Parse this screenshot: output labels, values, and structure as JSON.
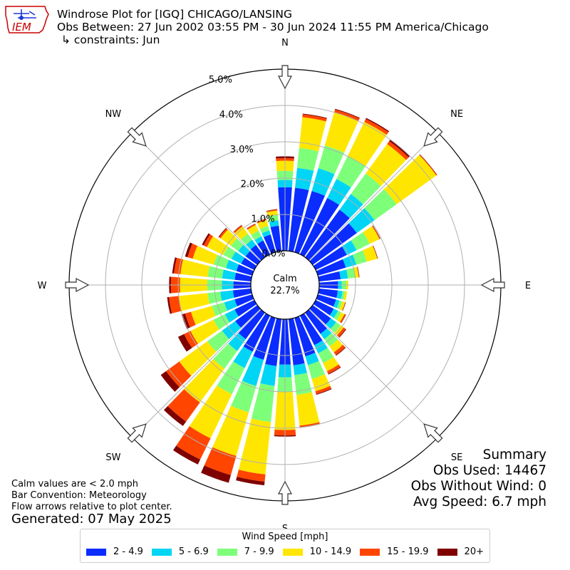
{
  "header": {
    "title": "Windrose Plot for [IGQ] CHICAGO/LANSING",
    "period": "Obs Between: 27 Jun 2002 03:55 PM - 30 Jun 2024 11:55 PM America/Chicago",
    "constraints": "↳ constraints: Jun"
  },
  "logo": {
    "text": "IEM",
    "color": "#cc0000"
  },
  "summary": {
    "heading": "Summary",
    "obs_used": "Obs Used: 14467",
    "obs_without_wind": "Obs Without Wind: 0",
    "avg_speed": "Avg Speed: 6.7 mph"
  },
  "notes": {
    "calm_note": "Calm values are < 2.0 mph",
    "bar_convention": "Bar Convention: Meteorology",
    "flow_note": "Flow arrows relative to plot center."
  },
  "generated": "Generated: 07 May 2025",
  "chart_data": {
    "type": "windrose",
    "units": "mph",
    "calm": {
      "label": "Calm",
      "value_label": "22.7%",
      "percent": 22.7
    },
    "radial_ticks": [
      "0.0%",
      "1.0%",
      "2.0%",
      "3.0%",
      "4.0%",
      "5.0%"
    ],
    "rmax": 5.0,
    "compass": [
      "N",
      "NE",
      "E",
      "SE",
      "S",
      "SW",
      "W",
      "NW"
    ],
    "legend_title": "Wind Speed [mph]",
    "bins": [
      "2 - 4.9",
      "5 - 6.9",
      "7 - 9.9",
      "10 - 14.9",
      "15 - 19.9",
      "20+"
    ],
    "colors": [
      "#0a2cff",
      "#00d5f5",
      "#7dff7a",
      "#ffe600",
      "#ff4500",
      "#7f0000"
    ],
    "sector_width_deg": 10,
    "directions_deg": [
      0,
      10,
      20,
      30,
      40,
      50,
      60,
      70,
      80,
      90,
      100,
      110,
      120,
      130,
      140,
      150,
      160,
      170,
      180,
      190,
      200,
      210,
      220,
      230,
      240,
      250,
      260,
      270,
      280,
      290,
      300,
      310,
      320,
      330,
      340,
      350
    ],
    "cumulative_percent": [
      [
        1.75,
        1.95,
        2.2,
        2.48,
        2.55,
        2.6
      ],
      [
        1.75,
        2.3,
        2.85,
        3.7,
        3.78,
        3.8
      ],
      [
        1.75,
        2.4,
        3.05,
        4.0,
        4.08,
        4.1
      ],
      [
        1.72,
        2.3,
        3.0,
        4.05,
        4.14,
        4.17
      ],
      [
        1.62,
        2.15,
        2.85,
        3.85,
        3.95,
        4.0
      ],
      [
        1.5,
        2.1,
        2.85,
        4.2,
        4.22,
        4.23
      ],
      [
        0.95,
        1.25,
        1.65,
        1.95,
        1.97,
        1.98
      ],
      [
        0.8,
        1.1,
        1.4,
        1.7,
        1.71,
        1.72
      ],
      [
        0.6,
        0.8,
        1.0,
        1.1,
        1.11,
        1.12
      ],
      [
        0.52,
        0.62,
        0.75,
        0.8,
        0.8,
        0.8
      ],
      [
        0.52,
        0.65,
        0.72,
        0.78,
        0.78,
        0.78
      ],
      [
        0.52,
        0.62,
        0.7,
        0.78,
        0.79,
        0.8
      ],
      [
        0.55,
        0.68,
        0.78,
        0.88,
        0.92,
        0.93
      ],
      [
        0.62,
        0.8,
        0.95,
        1.05,
        1.12,
        1.14
      ],
      [
        0.72,
        0.9,
        1.15,
        1.35,
        1.44,
        1.46
      ],
      [
        0.9,
        1.15,
        1.45,
        1.7,
        1.78,
        1.8
      ],
      [
        1.1,
        1.35,
        1.75,
        2.1,
        2.18,
        2.2
      ],
      [
        1.28,
        1.55,
        2.1,
        2.95,
        3.0,
        3.01
      ],
      [
        1.25,
        1.6,
        2.0,
        3.05,
        3.2,
        3.23
      ],
      [
        1.3,
        1.85,
        2.85,
        4.3,
        4.5,
        4.6
      ],
      [
        1.2,
        1.95,
        2.7,
        3.95,
        4.5,
        4.72
      ],
      [
        1.1,
        1.6,
        2.4,
        3.75,
        4.4,
        4.55
      ],
      [
        0.9,
        1.3,
        1.9,
        3.05,
        3.7,
        3.85
      ],
      [
        0.75,
        1.2,
        1.7,
        2.65,
        3.1,
        3.28
      ],
      [
        0.6,
        0.9,
        1.25,
        1.95,
        2.15,
        2.33
      ],
      [
        0.5,
        0.8,
        1.15,
        1.75,
        1.92,
        2.02
      ],
      [
        0.5,
        0.85,
        1.2,
        2.0,
        2.27,
        2.32
      ],
      [
        0.48,
        0.8,
        1.2,
        1.95,
        2.2,
        2.25
      ],
      [
        0.45,
        0.8,
        1.2,
        1.95,
        2.13,
        2.18
      ],
      [
        0.45,
        0.75,
        1.1,
        1.7,
        1.85,
        1.92
      ],
      [
        0.4,
        0.7,
        0.95,
        1.45,
        1.55,
        1.6
      ],
      [
        0.4,
        0.65,
        0.9,
        1.25,
        1.3,
        1.32
      ],
      [
        0.42,
        0.6,
        0.8,
        1.05,
        1.09,
        1.1
      ],
      [
        0.42,
        0.55,
        0.72,
        0.9,
        0.93,
        0.94
      ],
      [
        0.5,
        0.62,
        0.75,
        0.92,
        0.95,
        0.96
      ],
      [
        0.7,
        0.85,
        1.0,
        1.12,
        1.15,
        1.16
      ]
    ]
  }
}
